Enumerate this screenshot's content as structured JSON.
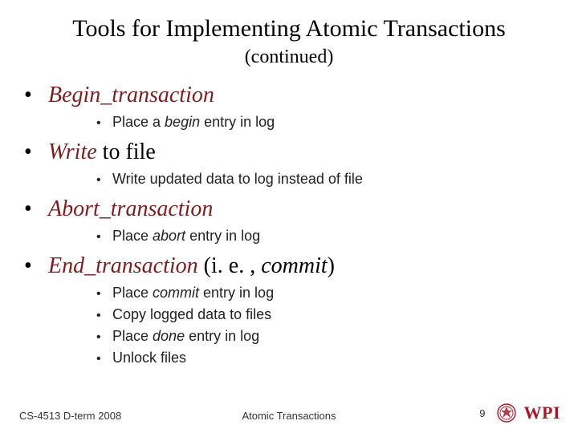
{
  "title": "Tools for Implementing Atomic Transactions",
  "subtitle": "(continued)",
  "accent_color": "#7a1f1f",
  "bullets": [
    {
      "main_parts": [
        {
          "text": "Begin_transaction",
          "italic": true,
          "color": "#7a1f1f"
        }
      ],
      "sub": [
        {
          "parts": [
            {
              "text": "Place a "
            },
            {
              "text": "begin",
              "italic": true
            },
            {
              "text": " entry in log"
            }
          ]
        }
      ]
    },
    {
      "main_parts": [
        {
          "text": "Write",
          "italic": true,
          "color": "#7a1f1f"
        },
        {
          "text": " to file"
        }
      ],
      "sub": [
        {
          "parts": [
            {
              "text": "Write updated data to log instead of file"
            }
          ]
        }
      ]
    },
    {
      "main_parts": [
        {
          "text": "Abort_transaction",
          "italic": true,
          "color": "#7a1f1f"
        }
      ],
      "sub": [
        {
          "parts": [
            {
              "text": "Place "
            },
            {
              "text": "abort",
              "italic": true
            },
            {
              "text": " entry in log"
            }
          ]
        }
      ]
    },
    {
      "main_parts": [
        {
          "text": "End_transaction",
          "italic": true,
          "color": "#7a1f1f"
        },
        {
          "text": " (i. e. , "
        },
        {
          "text": "commit",
          "italic": true
        },
        {
          "text": ")"
        }
      ],
      "sub": [
        {
          "parts": [
            {
              "text": "Place "
            },
            {
              "text": "commit",
              "italic": true
            },
            {
              "text": " entry in log"
            }
          ]
        },
        {
          "parts": [
            {
              "text": "Copy logged data to files"
            }
          ]
        },
        {
          "parts": [
            {
              "text": "Place "
            },
            {
              "text": "done",
              "italic": true
            },
            {
              "text": " entry in log"
            }
          ]
        },
        {
          "parts": [
            {
              "text": "Unlock files"
            }
          ]
        }
      ]
    }
  ],
  "footer": {
    "left": "CS-4513 D-term 2008",
    "center": "Atomic Transactions",
    "page_number": "9",
    "logo_text": "WPI",
    "logo_color": "#a01c2b"
  }
}
